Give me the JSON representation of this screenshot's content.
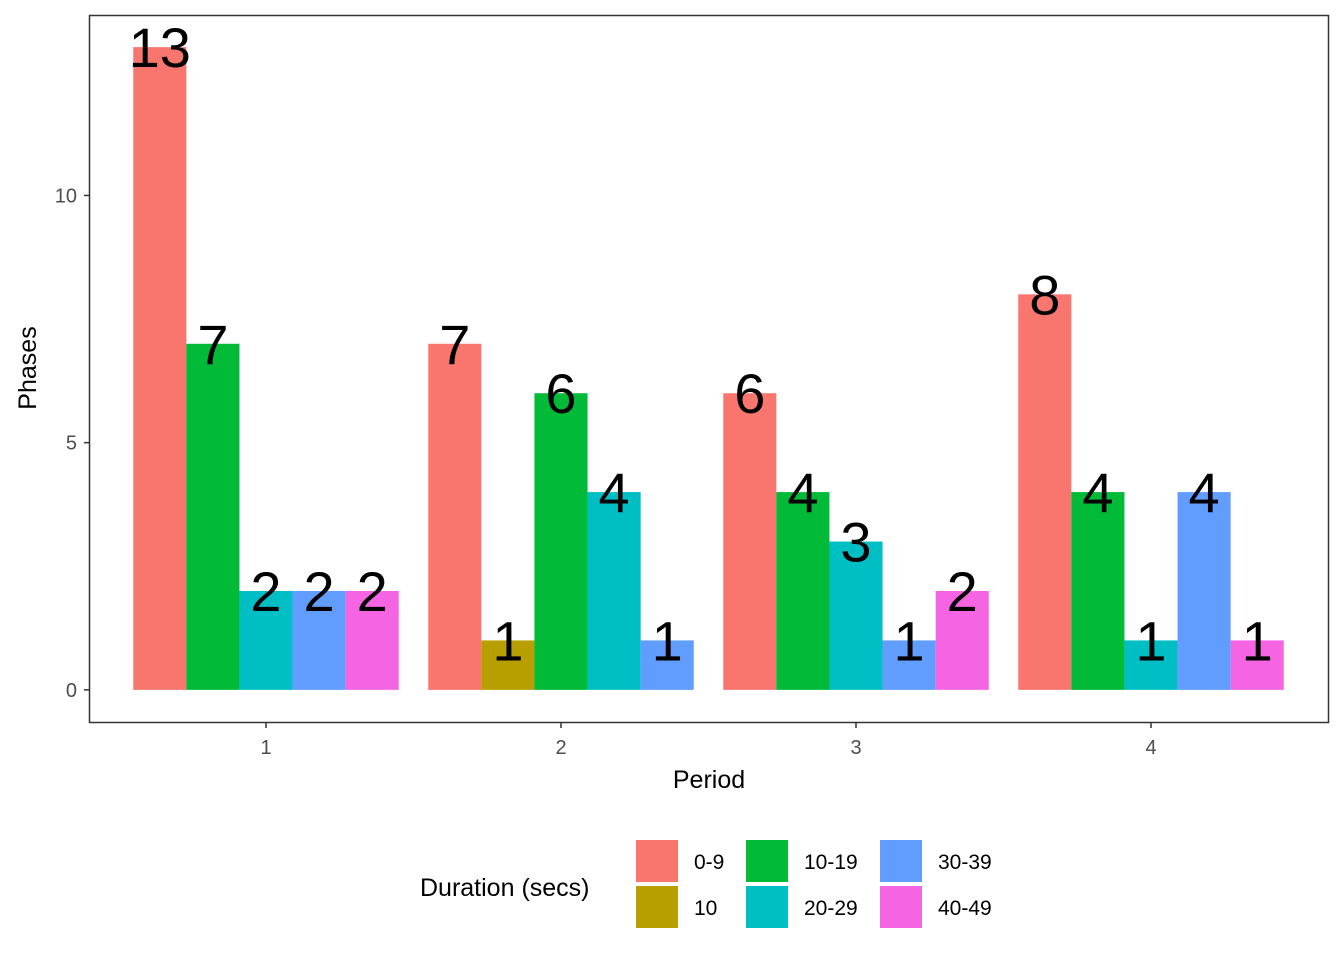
{
  "chart_data": {
    "type": "bar",
    "xlabel": "Period",
    "ylabel": "Phases",
    "categories": [
      "1",
      "2",
      "3",
      "4"
    ],
    "y_ticks": [
      0,
      5,
      10
    ],
    "ylim": [
      -0.65,
      13.65
    ],
    "grid": false,
    "legend": {
      "title": "Duration (secs)",
      "position": "bottom",
      "layout": [
        [
          "0-9",
          "10"
        ],
        [
          "10-19",
          "20-29"
        ],
        [
          "30-39",
          "40-49"
        ]
      ]
    },
    "groups": [
      "0-9",
      "10",
      "10-19",
      "20-29",
      "30-39",
      "40-49"
    ],
    "colors": {
      "0-9": "#F8766D",
      "10": "#B79F00",
      "10-19": "#00BA38",
      "20-29": "#00BFC4",
      "30-39": "#619CFF",
      "40-49": "#F564E3"
    },
    "bars": [
      {
        "period": "1",
        "group": "0-9",
        "value": 13
      },
      {
        "period": "1",
        "group": "10-19",
        "value": 7
      },
      {
        "period": "1",
        "group": "20-29",
        "value": 2
      },
      {
        "period": "1",
        "group": "30-39",
        "value": 2
      },
      {
        "period": "1",
        "group": "40-49",
        "value": 2
      },
      {
        "period": "2",
        "group": "0-9",
        "value": 7
      },
      {
        "period": "2",
        "group": "10",
        "value": 1
      },
      {
        "period": "2",
        "group": "10-19",
        "value": 6
      },
      {
        "period": "2",
        "group": "20-29",
        "value": 4
      },
      {
        "period": "2",
        "group": "30-39",
        "value": 1
      },
      {
        "period": "3",
        "group": "0-9",
        "value": 6
      },
      {
        "period": "3",
        "group": "10-19",
        "value": 4
      },
      {
        "period": "3",
        "group": "20-29",
        "value": 3
      },
      {
        "period": "3",
        "group": "30-39",
        "value": 1
      },
      {
        "period": "3",
        "group": "40-49",
        "value": 2
      },
      {
        "period": "4",
        "group": "0-9",
        "value": 8
      },
      {
        "period": "4",
        "group": "10-19",
        "value": 4
      },
      {
        "period": "4",
        "group": "20-29",
        "value": 1
      },
      {
        "period": "4",
        "group": "30-39",
        "value": 4
      },
      {
        "period": "4",
        "group": "40-49",
        "value": 1
      }
    ]
  }
}
